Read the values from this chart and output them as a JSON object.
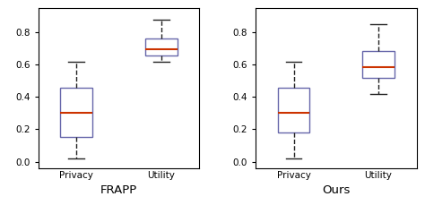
{
  "frapp": {
    "privacy": {
      "whislo": 0.02,
      "q1": 0.15,
      "med": 0.3,
      "q3": 0.46,
      "whishi": 0.62
    },
    "utility": {
      "whislo": 0.62,
      "q1": 0.655,
      "med": 0.695,
      "q3": 0.76,
      "whishi": 0.88
    }
  },
  "ours": {
    "privacy": {
      "whislo": 0.02,
      "q1": 0.18,
      "med": 0.3,
      "q3": 0.46,
      "whishi": 0.62
    },
    "utility": {
      "whislo": 0.42,
      "q1": 0.52,
      "med": 0.585,
      "q3": 0.685,
      "whishi": 0.85
    }
  },
  "ylim": [
    -0.04,
    0.95
  ],
  "yticks": [
    0,
    0.2,
    0.4,
    0.6,
    0.8
  ],
  "box_color": "#6666aa",
  "median_color": "#cc3300",
  "whisker_color": "#222222",
  "cap_color": "#222222",
  "xlabel_frapp": "FRAPP",
  "xlabel_ours": "Ours",
  "xtick_labels": [
    "Privacy",
    "Utility"
  ],
  "box_width": 0.38,
  "linewidth": 1.0,
  "tick_fontsize": 7.5,
  "xlabel_fontsize": 9.5
}
